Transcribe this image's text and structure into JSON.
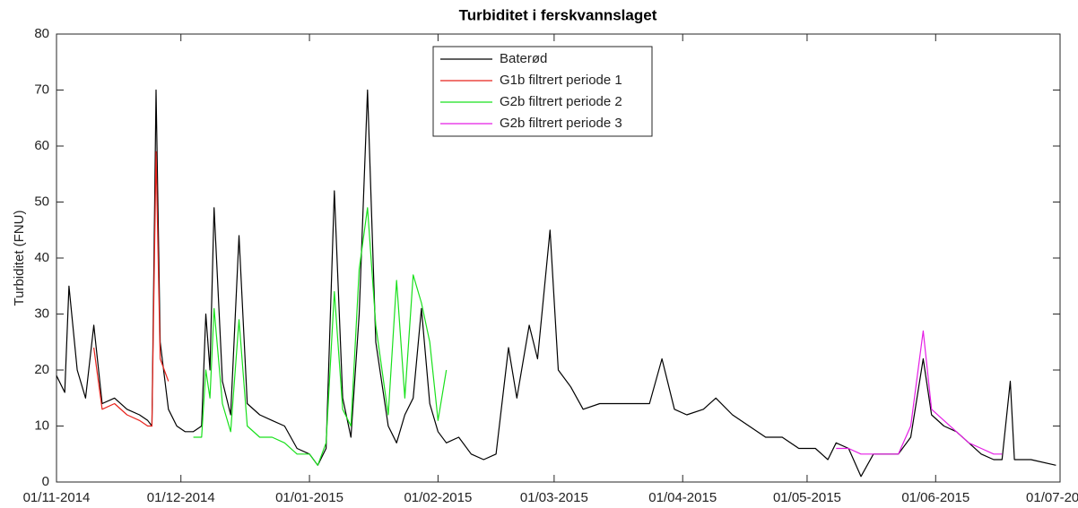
{
  "chart_data": {
    "type": "line",
    "title": "Turbiditet i ferskvannslaget",
    "y_label": "Turbiditet (FNU)",
    "x": [
      "2014-11-01",
      "2014-11-03",
      "2014-11-04",
      "2014-11-06",
      "2014-11-08",
      "2014-11-10",
      "2014-11-12",
      "2014-11-15",
      "2014-11-18",
      "2014-11-21",
      "2014-11-23",
      "2014-11-24",
      "2014-11-25",
      "2014-11-26",
      "2014-11-28",
      "2014-11-30",
      "2014-12-02",
      "2014-12-04",
      "2014-12-06",
      "2014-12-07",
      "2014-12-08",
      "2014-12-09",
      "2014-12-11",
      "2014-12-13",
      "2014-12-15",
      "2014-12-17",
      "2014-12-20",
      "2014-12-23",
      "2014-12-26",
      "2014-12-29",
      "2015-01-01",
      "2015-01-03",
      "2015-01-05",
      "2015-01-07",
      "2015-01-09",
      "2015-01-11",
      "2015-01-13",
      "2015-01-15",
      "2015-01-17",
      "2015-01-20",
      "2015-01-22",
      "2015-01-24",
      "2015-01-26",
      "2015-01-28",
      "2015-01-30",
      "2015-02-01",
      "2015-02-03",
      "2015-02-06",
      "2015-02-09",
      "2015-02-12",
      "2015-02-15",
      "2015-02-18",
      "2015-02-20",
      "2015-02-23",
      "2015-02-25",
      "2015-02-28",
      "2015-03-02",
      "2015-03-05",
      "2015-03-08",
      "2015-03-12",
      "2015-03-16",
      "2015-03-20",
      "2015-03-24",
      "2015-03-27",
      "2015-03-30",
      "2015-04-02",
      "2015-04-06",
      "2015-04-09",
      "2015-04-13",
      "2015-04-17",
      "2015-04-21",
      "2015-04-25",
      "2015-04-29",
      "2015-05-03",
      "2015-05-06",
      "2015-05-08",
      "2015-05-11",
      "2015-05-14",
      "2015-05-17",
      "2015-05-20",
      "2015-05-23",
      "2015-05-26",
      "2015-05-29",
      "2015-05-31",
      "2015-06-03",
      "2015-06-06",
      "2015-06-09",
      "2015-06-12",
      "2015-06-15",
      "2015-06-17",
      "2015-06-19",
      "2015-06-20",
      "2015-06-24",
      "2015-06-30"
    ],
    "series": [
      {
        "name": "Baterød",
        "color": "#000000",
        "values": [
          19,
          16,
          35,
          20,
          15,
          28,
          14,
          15,
          13,
          12,
          11,
          10,
          70,
          25,
          13,
          10,
          9,
          9,
          10,
          30,
          20,
          49,
          18,
          12,
          44,
          14,
          12,
          11,
          10,
          6,
          5,
          3,
          6,
          52,
          15,
          8,
          30,
          70,
          25,
          10,
          7,
          12,
          15,
          31,
          14,
          9,
          7,
          8,
          5,
          4,
          5,
          24,
          15,
          28,
          22,
          45,
          20,
          17,
          13,
          14,
          14,
          14,
          14,
          22,
          13,
          12,
          13,
          15,
          12,
          10,
          8,
          8,
          6,
          6,
          4,
          7,
          6,
          1,
          5,
          5,
          5,
          8,
          22,
          12,
          10,
          9,
          7,
          5,
          4,
          4,
          18,
          4,
          4,
          3
        ]
      },
      {
        "name": "G1b filtrert periode 1",
        "color": "#e8231c",
        "values": [
          null,
          null,
          null,
          null,
          null,
          24,
          13,
          14,
          12,
          11,
          10,
          10,
          59,
          22,
          18,
          null,
          null,
          null,
          null,
          null,
          null,
          null,
          null,
          null,
          null,
          null,
          null,
          null,
          null,
          null,
          null,
          null,
          null,
          null,
          null,
          null,
          null,
          null,
          null,
          null,
          null,
          null,
          null,
          null,
          null,
          null,
          null,
          null,
          null,
          null,
          null,
          null,
          null,
          null,
          null,
          null,
          null,
          null,
          null,
          null,
          null,
          null,
          null,
          null,
          null,
          null,
          null,
          null,
          null,
          null,
          null,
          null,
          null,
          null,
          null,
          null,
          null,
          null,
          null,
          null,
          null,
          null,
          null,
          null,
          null,
          null,
          null,
          null,
          null,
          null,
          null,
          null,
          null,
          null
        ]
      },
      {
        "name": "G2b filtrert periode 2",
        "color": "#19e01c",
        "values": [
          null,
          null,
          null,
          null,
          null,
          null,
          null,
          null,
          null,
          null,
          null,
          null,
          null,
          null,
          null,
          null,
          null,
          8,
          8,
          20,
          15,
          31,
          14,
          9,
          29,
          10,
          8,
          8,
          7,
          5,
          5,
          3,
          7,
          34,
          13,
          10,
          38,
          49,
          28,
          12,
          36,
          15,
          37,
          32,
          25,
          11,
          20,
          null,
          null,
          null,
          null,
          null,
          null,
          null,
          null,
          null,
          null,
          null,
          null,
          null,
          null,
          null,
          null,
          null,
          null,
          null,
          null,
          null,
          null,
          null,
          null,
          null,
          null,
          null,
          null,
          null,
          null,
          null,
          null,
          null,
          null,
          null,
          null,
          null,
          null,
          null,
          null,
          null,
          null,
          null,
          null,
          null,
          null,
          null
        ]
      },
      {
        "name": "G2b filtrert periode 3",
        "color": "#e51ee5",
        "values": [
          null,
          null,
          null,
          null,
          null,
          null,
          null,
          null,
          null,
          null,
          null,
          null,
          null,
          null,
          null,
          null,
          null,
          null,
          null,
          null,
          null,
          null,
          null,
          null,
          null,
          null,
          null,
          null,
          null,
          null,
          null,
          null,
          null,
          null,
          null,
          null,
          null,
          null,
          null,
          null,
          null,
          null,
          null,
          null,
          null,
          null,
          null,
          null,
          null,
          null,
          null,
          null,
          null,
          null,
          null,
          null,
          null,
          null,
          null,
          null,
          null,
          null,
          null,
          null,
          null,
          null,
          null,
          null,
          null,
          null,
          null,
          null,
          null,
          null,
          null,
          6,
          6,
          5,
          5,
          5,
          5,
          10,
          27,
          13,
          11,
          9,
          7,
          6,
          5,
          5,
          null,
          null,
          null,
          null
        ]
      }
    ],
    "xlim": [
      "2014-11-01",
      "2015-07-01"
    ],
    "xticks": [
      {
        "value": "2014-11-01",
        "label": "01/11-2014"
      },
      {
        "value": "2014-12-01",
        "label": "01/12-2014"
      },
      {
        "value": "2015-01-01",
        "label": "01/01-2015"
      },
      {
        "value": "2015-02-01",
        "label": "01/02-2015"
      },
      {
        "value": "2015-03-01",
        "label": "01/03-2015"
      },
      {
        "value": "2015-04-01",
        "label": "01/04-2015"
      },
      {
        "value": "2015-05-01",
        "label": "01/05-2015"
      },
      {
        "value": "2015-06-01",
        "label": "01/06-2015"
      },
      {
        "value": "2015-07-01",
        "label": "01/07-2015"
      }
    ],
    "ylim": [
      0,
      80
    ],
    "yticks": [
      0,
      10,
      20,
      30,
      40,
      50,
      60,
      70,
      80
    ],
    "grid": false,
    "legend": "top"
  }
}
